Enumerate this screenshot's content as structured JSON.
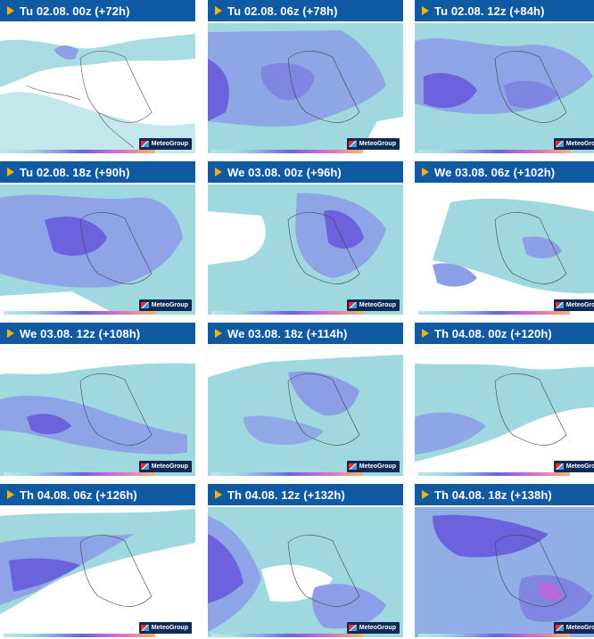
{
  "brand": "MeteoGroup",
  "colors": {
    "header_bg": "#0f5aa3",
    "header_text": "#ffffff",
    "play_icon": "#f5b400",
    "precip_light": "#9fd8df",
    "precip_mid": "#8c9ee8",
    "precip_heavy": "#6d62dd",
    "precip_extreme": "#b56ad8"
  },
  "panels": [
    {
      "title": "Tu 02.08. 00z (+72h)",
      "icon": "play-icon"
    },
    {
      "title": "Tu 02.08. 06z (+78h)",
      "icon": "play-icon"
    },
    {
      "title": "Tu 02.08. 12z (+84h)",
      "icon": "play-icon"
    },
    {
      "title": "Tu 02.08. 18z (+90h)",
      "icon": "play-icon"
    },
    {
      "title": "We 03.08. 00z (+96h)",
      "icon": "play-icon"
    },
    {
      "title": "We 03.08. 06z (+102h)",
      "icon": "play-icon"
    },
    {
      "title": "We 03.08. 12z (+108h)",
      "icon": "play-icon"
    },
    {
      "title": "We 03.08. 18z (+114h)",
      "icon": "play-icon"
    },
    {
      "title": "Th 04.08. 00z (+120h)",
      "icon": "play-icon"
    },
    {
      "title": "Th 04.08. 06z (+126h)",
      "icon": "play-icon"
    },
    {
      "title": "Th 04.08. 12z (+132h)",
      "icon": "play-icon"
    },
    {
      "title": "Th 04.08. 18z (+138h)",
      "icon": "play-icon"
    }
  ]
}
